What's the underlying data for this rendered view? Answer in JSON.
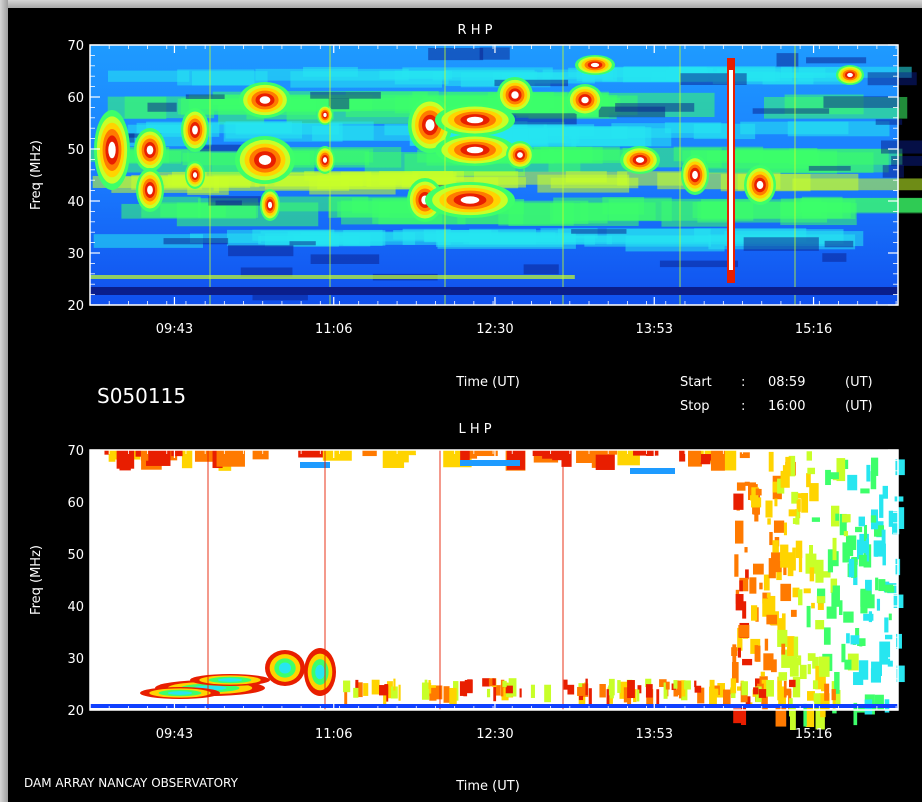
{
  "window": {
    "source_label": "DAM ARRAY  NANCAY OBSERVATORY",
    "date_code": "S050115",
    "start_label": "Start",
    "stop_label": "Stop",
    "separator": ":",
    "start_time": "08:59",
    "stop_time": "16:00",
    "unit_label": "(UT)"
  },
  "chart_data": [
    {
      "type": "heatmap",
      "title": "R H P",
      "xlabel": "Time (UT)",
      "ylabel": "Freq (MHz)",
      "xlim": [
        "08:59",
        "16:00"
      ],
      "ylim": [
        20,
        70
      ],
      "x_ticks": [
        "09:43",
        "11:06",
        "12:30",
        "13:53",
        "15:16"
      ],
      "y_ticks": [
        20,
        30,
        40,
        50,
        60,
        70
      ],
      "colors": [
        "#0a1e8c",
        "#1040ff",
        "#1e9bff",
        "#27e6f0",
        "#3dff6a",
        "#c8ff28",
        "#ffd400",
        "#ff7a00",
        "#e81e00",
        "#ffffff"
      ]
    },
    {
      "type": "heatmap",
      "title": "L H P",
      "xlabel": "Time (UT)",
      "ylabel": "Freq (MHz)",
      "xlim": [
        "08:59",
        "16:00"
      ],
      "ylim": [
        20,
        70
      ],
      "x_ticks": [
        "09:43",
        "11:06",
        "12:30",
        "13:53",
        "15:16"
      ],
      "y_ticks": [
        20,
        30,
        40,
        50,
        60,
        70
      ]
    }
  ]
}
